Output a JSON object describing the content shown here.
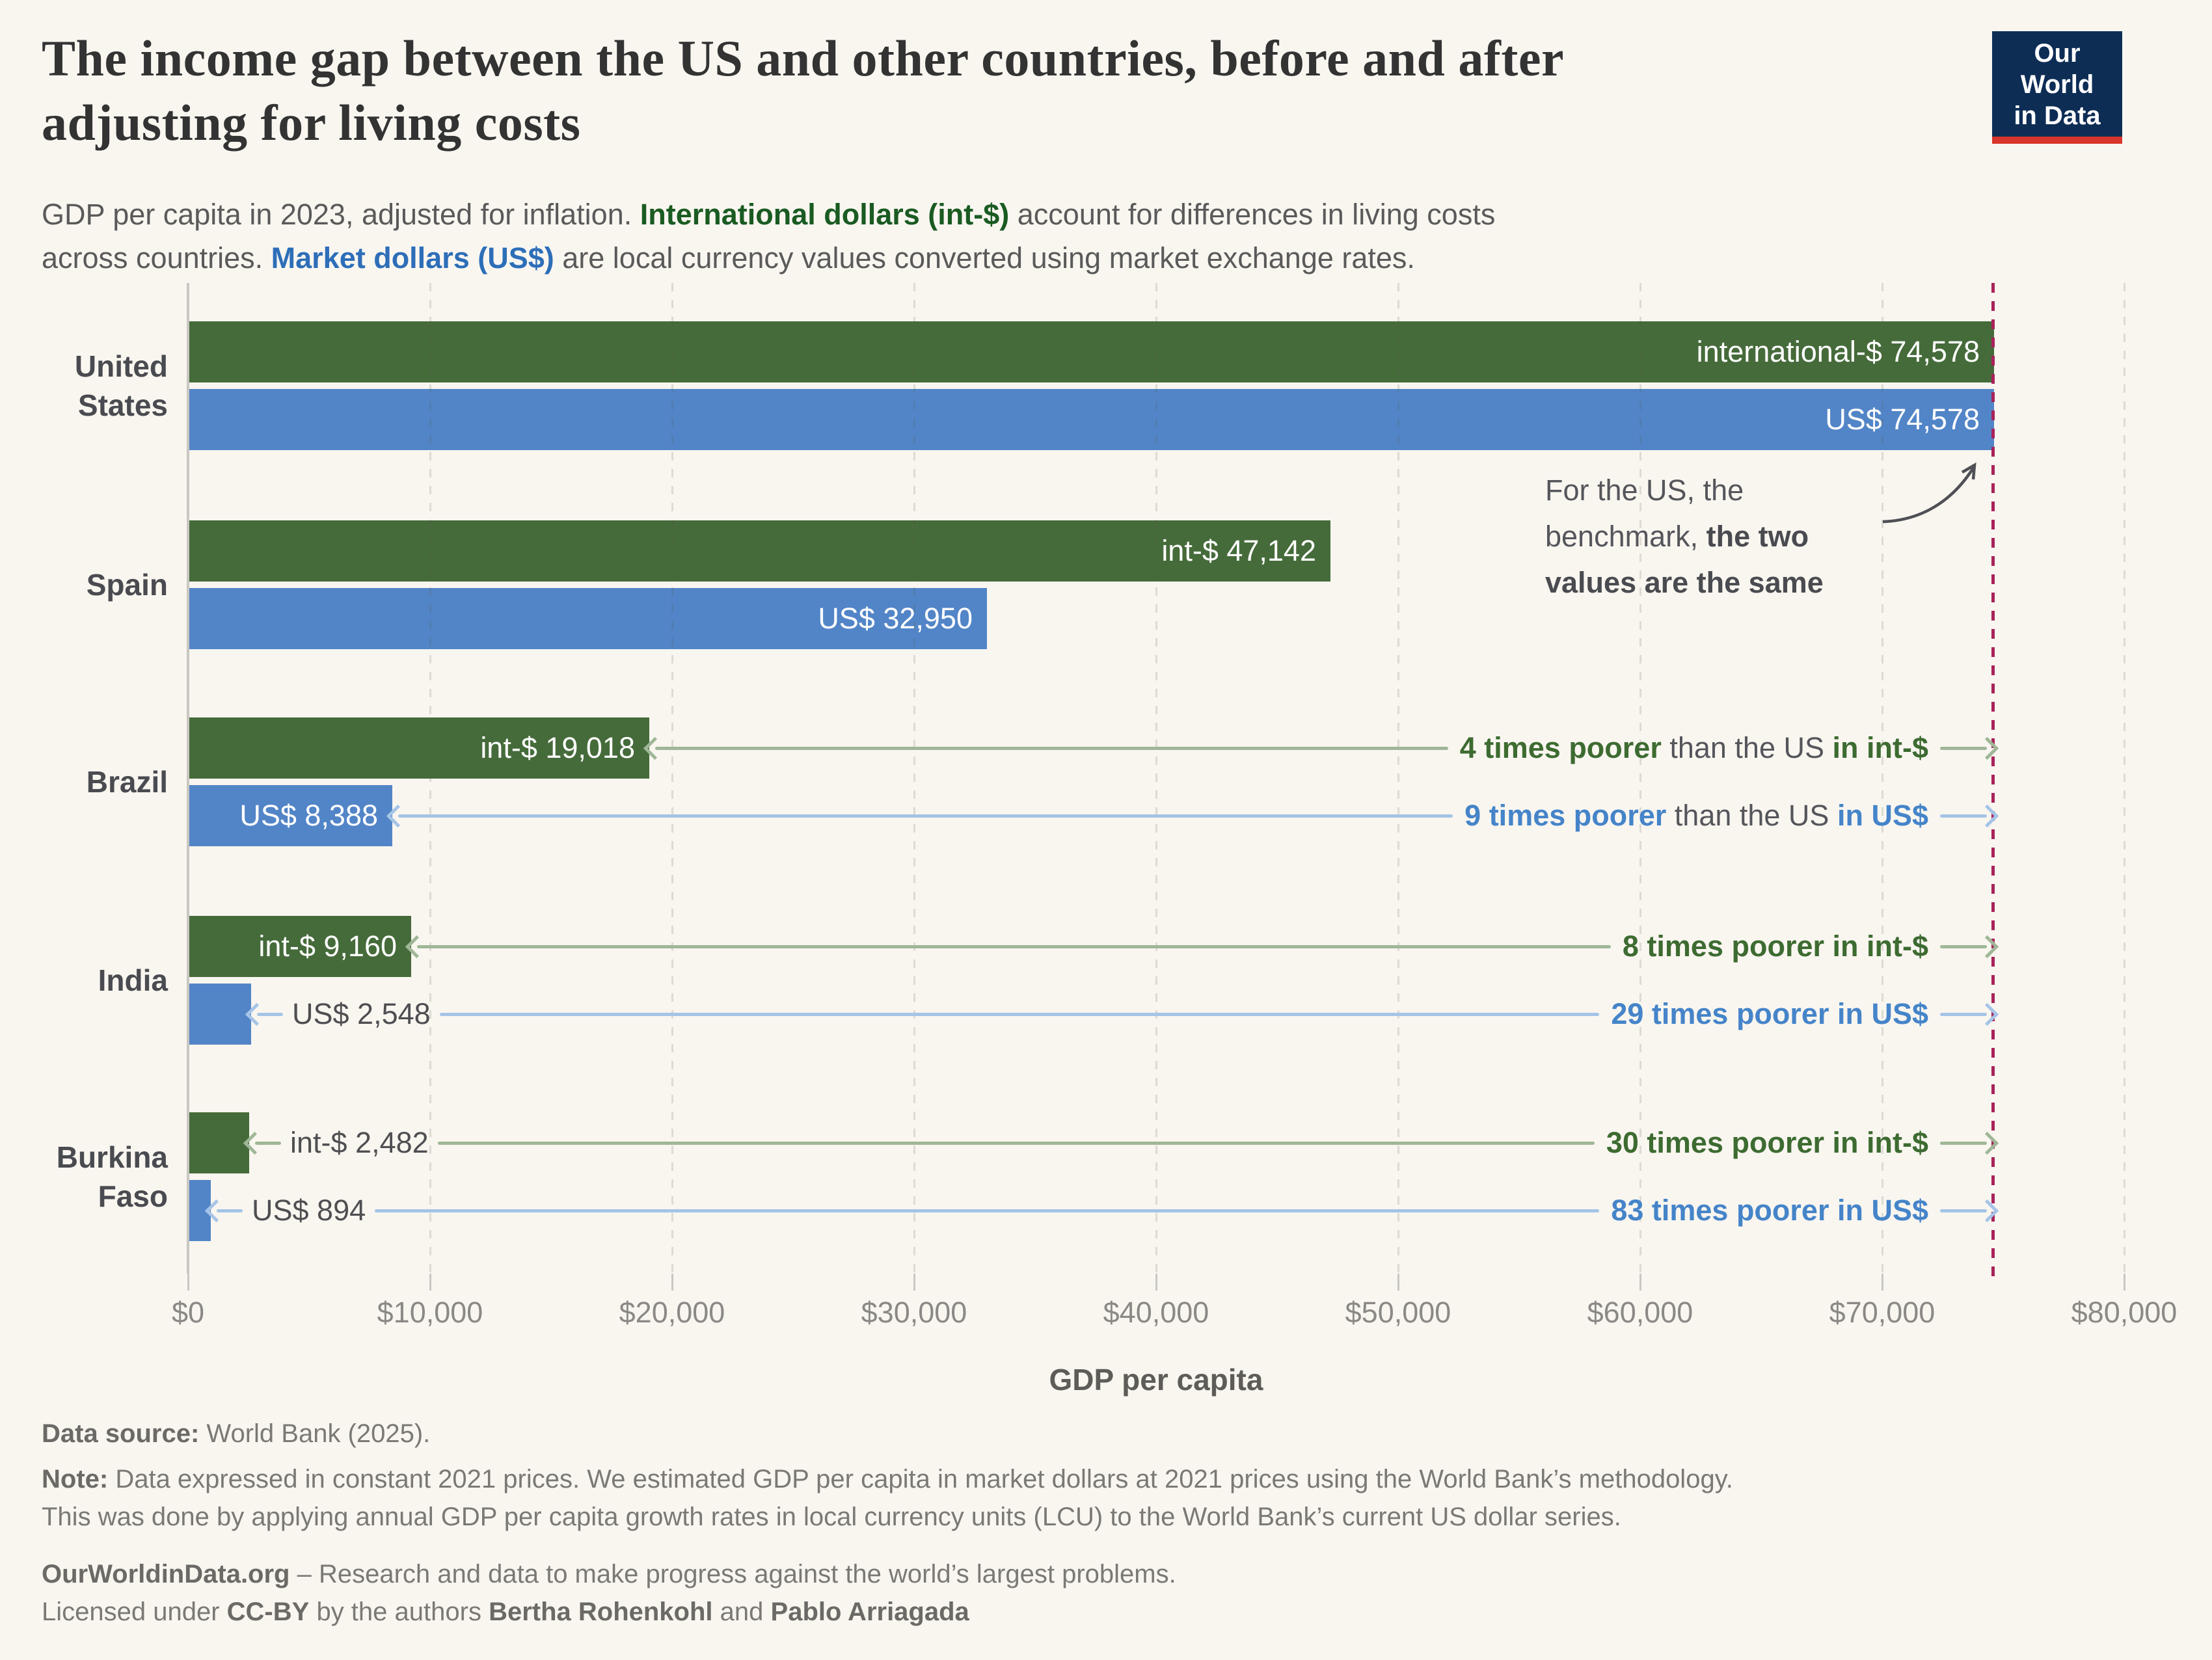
{
  "header": {
    "title_line1": "The income gap between the US and other countries, before and after",
    "title_line2": "adjusting for living costs",
    "subtitle_lines": [
      [
        {
          "t": "GDP per capita in 2023, adjusted for inflation. ",
          "s": "plain"
        },
        {
          "t": "International dollars (int-$)",
          "s": "int"
        },
        {
          "t": " account for differences in living costs",
          "s": "plain"
        }
      ],
      [
        {
          "t": "across countries. ",
          "s": "plain"
        },
        {
          "t": "Market dollars (US$)",
          "s": "usd"
        },
        {
          "t": " are local currency values converted using market exchange rates.",
          "s": "plain"
        }
      ]
    ],
    "logo": {
      "line1": "Our World",
      "line2": "in Data"
    }
  },
  "colors": {
    "background": "#F9F6F0",
    "int_bar": "#456B3A",
    "usd_bar": "#5285C7",
    "int_text": "#3D6B31",
    "usd_text": "#4584C9",
    "int_line": "#9FB797",
    "usd_line": "#A5C4E7",
    "subtitle_int": "#1A5B22",
    "subtitle_usd": "#2D6EB8",
    "benchmark_line": "#A8235A",
    "logo_bg": "#0D2D55",
    "logo_stripe": "#D8352C"
  },
  "chart_data": {
    "type": "bar",
    "title": "The income gap between the US and other countries, before and after adjusting for living costs",
    "subtitle": "GDP per capita in 2023, adjusted for inflation. International dollars (int-$) account for differences in living costs across countries. Market dollars (US$) are local currency values converted using market exchange rates.",
    "xlabel": "GDP per capita",
    "xlim": [
      0,
      80000
    ],
    "x_ticks": [
      0,
      10000,
      20000,
      30000,
      40000,
      50000,
      60000,
      70000,
      80000
    ],
    "x_tick_labels": [
      "$0",
      "$10,000",
      "$20,000",
      "$30,000",
      "$40,000",
      "$50,000",
      "$60,000",
      "$70,000",
      "$80,000"
    ],
    "grid": "dashed-vertical",
    "benchmark_value": 74578,
    "categories": [
      "United States",
      "Spain",
      "Brazil",
      "India",
      "Burkina Faso"
    ],
    "category_lines": [
      [
        "United",
        "States"
      ],
      [
        "Spain"
      ],
      [
        "Brazil"
      ],
      [
        "India"
      ],
      [
        "Burkina",
        "Faso"
      ]
    ],
    "series": [
      {
        "name": "International dollars (int-$)",
        "values": [
          74578,
          47142,
          19018,
          9160,
          2482
        ],
        "bar_labels": [
          "international-$ 74,578",
          "int-$ 47,142",
          "int-$ 19,018",
          "int-$ 9,160",
          "int-$ 2,482"
        ],
        "label_inside": [
          true,
          true,
          true,
          true,
          false
        ]
      },
      {
        "name": "Market dollars (US$)",
        "values": [
          74578,
          32950,
          8388,
          2548,
          894
        ],
        "bar_labels": [
          "US$ 74,578",
          "US$ 32,950",
          "US$ 8,388",
          "US$ 2,548",
          "US$ 894"
        ],
        "label_inside": [
          true,
          true,
          true,
          false,
          false
        ]
      }
    ],
    "ratio_annotations": [
      {
        "country_index": 2,
        "series": "int",
        "parts": [
          {
            "t": "4 times poorer",
            "b": true
          },
          {
            "t": " than the US ",
            "b": false
          },
          {
            "t": "in int-$",
            "b": true
          }
        ]
      },
      {
        "country_index": 2,
        "series": "usd",
        "parts": [
          {
            "t": "9 times poorer",
            "b": true
          },
          {
            "t": " than the US ",
            "b": false
          },
          {
            "t": "in US$",
            "b": true
          }
        ]
      },
      {
        "country_index": 3,
        "series": "int",
        "parts": [
          {
            "t": "8 times poorer in int-$",
            "b": true
          }
        ]
      },
      {
        "country_index": 3,
        "series": "usd",
        "parts": [
          {
            "t": "29 times poorer in US$",
            "b": true
          }
        ]
      },
      {
        "country_index": 4,
        "series": "int",
        "parts": [
          {
            "t": "30 times poorer in int-$",
            "b": true
          }
        ]
      },
      {
        "country_index": 4,
        "series": "usd",
        "parts": [
          {
            "t": "83 times poorer in US$",
            "b": true
          }
        ]
      }
    ],
    "us_note_lines": [
      [
        {
          "t": "For the US, the",
          "b": false
        }
      ],
      [
        {
          "t": "benchmark, ",
          "b": false
        },
        {
          "t": "the two",
          "b": true
        }
      ],
      [
        {
          "t": "values are the same",
          "b": true
        }
      ]
    ]
  },
  "footer": {
    "datasource": [
      {
        "t": "Data source: ",
        "s": "b"
      },
      {
        "t": "World Bank (2025).",
        "s": "p"
      }
    ],
    "note_lines": [
      [
        {
          "t": "Note: ",
          "s": "b"
        },
        {
          "t": "Data expressed in constant 2021 prices. We estimated GDP per capita in market dollars at 2021 prices using the World Bank’s methodology.",
          "s": "p"
        }
      ],
      [
        {
          "t": "This was done by applying annual GDP per capita growth rates in local currency units (LCU) to the World Bank’s current US dollar series.",
          "s": "p"
        }
      ]
    ],
    "owid_line": [
      {
        "t": "OurWorldinData.org",
        "s": "b"
      },
      {
        "t": " – Research and data to make progress against the world’s largest problems.",
        "s": "p"
      }
    ],
    "license_line": [
      {
        "t": "Licensed under ",
        "s": "p"
      },
      {
        "t": "CC-BY",
        "s": "b"
      },
      {
        "t": " by the authors ",
        "s": "p"
      },
      {
        "t": "Bertha Rohenkohl",
        "s": "b"
      },
      {
        "t": " and ",
        "s": "p"
      },
      {
        "t": "Pablo Arriagada",
        "s": "b"
      }
    ]
  }
}
